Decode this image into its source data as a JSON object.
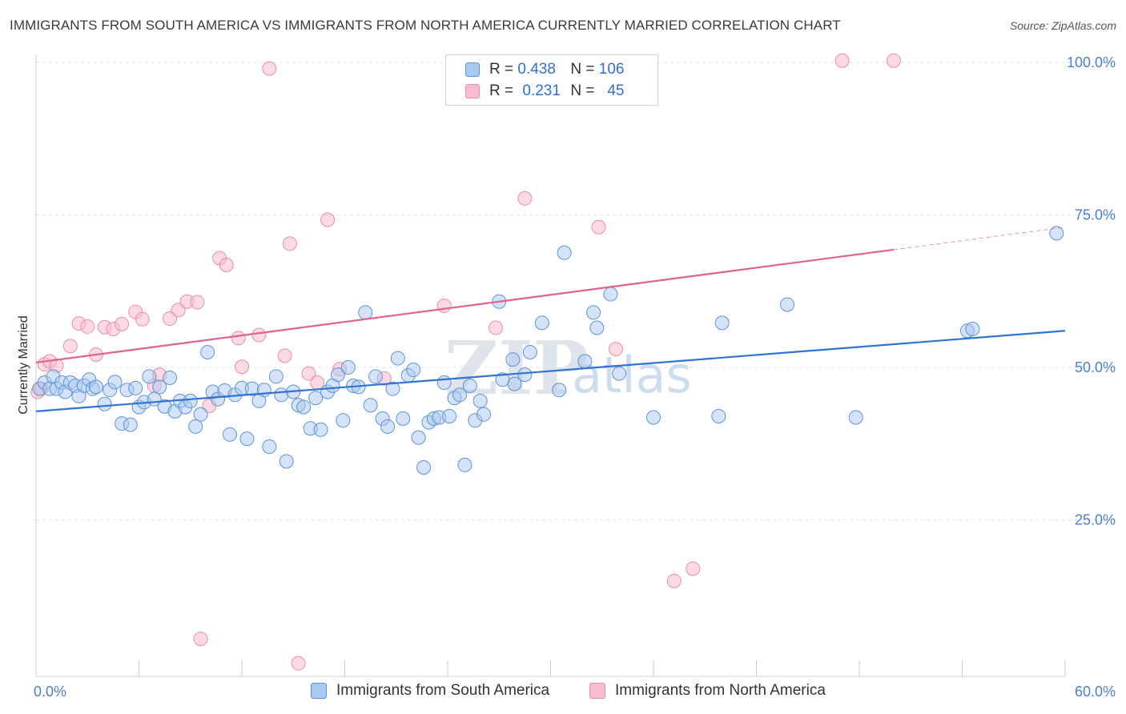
{
  "header": {
    "title": "IMMIGRANTS FROM SOUTH AMERICA VS IMMIGRANTS FROM NORTH AMERICA CURRENTLY MARRIED CORRELATION CHART",
    "source": "Source: ZipAtlas.com"
  },
  "legend": {
    "r_label": "R =",
    "n_label": "N =",
    "rows": [
      {
        "r": "0.438",
        "n": "106"
      },
      {
        "r": "0.231",
        "n": "45"
      }
    ]
  },
  "bottom_legend": {
    "south": "Immigrants from South America",
    "north": "Immigrants from North America"
  },
  "watermark": {
    "zip": "ZIP",
    "atlas": "atlas"
  },
  "colors": {
    "south_fill": "#a9c8f0",
    "south_stroke": "#5f93d6",
    "south_line": "#2f74d0",
    "north_fill": "#f7bccd",
    "north_stroke": "#e58fab",
    "north_line": "#e0628f",
    "tick_text": "#4a7fd0"
  },
  "chart_data": {
    "type": "scatter",
    "title": "IMMIGRANTS FROM SOUTH AMERICA VS IMMIGRANTS FROM NORTH AMERICA CURRENTLY MARRIED CORRELATION CHART",
    "xlabel": "",
    "ylabel": "Currently Married",
    "xlim": [
      0,
      60
    ],
    "ylim": [
      0,
      102
    ],
    "x_tick_labels": [
      "0.0%",
      "60.0%"
    ],
    "y_ticks": [
      25,
      50,
      75,
      100
    ],
    "y_tick_labels": [
      "25.0%",
      "50.0%",
      "75.0%",
      "100.0%"
    ],
    "grid": true,
    "series": [
      {
        "name": "Immigrants from South America",
        "r": 0.438,
        "n": 106,
        "trend": {
          "x0": 0,
          "y0": 42.8,
          "x1": 60,
          "y1": 56.0
        },
        "points": [
          [
            0.2,
            46.5
          ],
          [
            0.5,
            47.5
          ],
          [
            0.8,
            46.5
          ],
          [
            1.0,
            48.5
          ],
          [
            1.2,
            46.5
          ],
          [
            1.5,
            47.5
          ],
          [
            1.7,
            46.0
          ],
          [
            2.0,
            47.5
          ],
          [
            2.3,
            47.0
          ],
          [
            2.5,
            45.3
          ],
          [
            2.8,
            47.0
          ],
          [
            3.1,
            48.0
          ],
          [
            3.3,
            46.5
          ],
          [
            3.5,
            46.8
          ],
          [
            4.0,
            44.0
          ],
          [
            4.3,
            46.3
          ],
          [
            4.6,
            47.6
          ],
          [
            5.0,
            40.8
          ],
          [
            5.3,
            46.3
          ],
          [
            5.5,
            40.6
          ],
          [
            5.8,
            46.6
          ],
          [
            6.0,
            43.5
          ],
          [
            6.3,
            44.3
          ],
          [
            6.6,
            48.5
          ],
          [
            6.9,
            44.8
          ],
          [
            7.2,
            46.8
          ],
          [
            7.5,
            43.6
          ],
          [
            7.8,
            48.3
          ],
          [
            8.1,
            42.8
          ],
          [
            8.4,
            44.5
          ],
          [
            8.7,
            43.5
          ],
          [
            9.0,
            44.5
          ],
          [
            9.3,
            40.3
          ],
          [
            9.6,
            42.3
          ],
          [
            10.0,
            52.5
          ],
          [
            10.3,
            46.0
          ],
          [
            10.6,
            44.8
          ],
          [
            11.0,
            46.2
          ],
          [
            11.3,
            39.0
          ],
          [
            11.6,
            45.5
          ],
          [
            12.0,
            46.6
          ],
          [
            12.3,
            38.3
          ],
          [
            12.6,
            46.5
          ],
          [
            13.0,
            44.5
          ],
          [
            13.3,
            46.3
          ],
          [
            13.6,
            37.0
          ],
          [
            14.0,
            48.5
          ],
          [
            14.3,
            45.5
          ],
          [
            14.6,
            34.6
          ],
          [
            15.0,
            46.0
          ],
          [
            15.3,
            43.8
          ],
          [
            15.6,
            43.5
          ],
          [
            16.0,
            40.0
          ],
          [
            16.3,
            45.0
          ],
          [
            16.6,
            39.8
          ],
          [
            17.0,
            46.0
          ],
          [
            17.3,
            47.0
          ],
          [
            17.6,
            48.8
          ],
          [
            17.9,
            41.3
          ],
          [
            18.2,
            50.0
          ],
          [
            18.5,
            47.0
          ],
          [
            18.8,
            46.8
          ],
          [
            19.2,
            59.0
          ],
          [
            19.5,
            43.8
          ],
          [
            19.8,
            48.5
          ],
          [
            20.2,
            41.6
          ],
          [
            20.5,
            40.3
          ],
          [
            20.8,
            46.5
          ],
          [
            21.1,
            51.5
          ],
          [
            21.4,
            41.6
          ],
          [
            21.7,
            48.7
          ],
          [
            22.0,
            49.6
          ],
          [
            22.3,
            38.5
          ],
          [
            22.6,
            33.6
          ],
          [
            22.9,
            41.0
          ],
          [
            23.2,
            41.6
          ],
          [
            23.5,
            41.8
          ],
          [
            23.8,
            47.5
          ],
          [
            24.1,
            42.0
          ],
          [
            24.4,
            45.0
          ],
          [
            24.7,
            45.5
          ],
          [
            25.0,
            34.0
          ],
          [
            25.3,
            47.0
          ],
          [
            25.6,
            41.3
          ],
          [
            25.9,
            44.5
          ],
          [
            26.1,
            42.3
          ],
          [
            27.0,
            60.8
          ],
          [
            27.2,
            48.0
          ],
          [
            27.8,
            51.3
          ],
          [
            27.9,
            47.3
          ],
          [
            28.5,
            48.8
          ],
          [
            28.8,
            52.5
          ],
          [
            29.5,
            57.3
          ],
          [
            30.5,
            46.3
          ],
          [
            30.8,
            68.8
          ],
          [
            32.0,
            51.0
          ],
          [
            32.5,
            59.0
          ],
          [
            32.7,
            56.5
          ],
          [
            33.5,
            62.0
          ],
          [
            34.0,
            49.0
          ],
          [
            36.0,
            41.8
          ],
          [
            39.8,
            42.0
          ],
          [
            40.0,
            57.3
          ],
          [
            43.8,
            60.3
          ],
          [
            47.8,
            41.8
          ],
          [
            54.3,
            56.0
          ],
          [
            54.6,
            56.3
          ],
          [
            59.5,
            72.0
          ]
        ]
      },
      {
        "name": "Immigrants from North America",
        "r": 0.231,
        "n": 45,
        "trend": {
          "x0": 0,
          "y0": 50.8,
          "x1": 60,
          "y1": 73.0,
          "solid_until_x": 50
        },
        "points": [
          [
            0.1,
            46.0
          ],
          [
            0.3,
            46.5
          ],
          [
            0.5,
            50.5
          ],
          [
            0.8,
            51.0
          ],
          [
            1.2,
            50.3
          ],
          [
            2.0,
            53.5
          ],
          [
            2.5,
            57.2
          ],
          [
            3.0,
            56.7
          ],
          [
            3.5,
            52.1
          ],
          [
            4.0,
            56.6
          ],
          [
            4.5,
            56.3
          ],
          [
            5.0,
            57.1
          ],
          [
            5.8,
            59.1
          ],
          [
            6.2,
            57.9
          ],
          [
            6.9,
            47.0
          ],
          [
            7.2,
            48.8
          ],
          [
            7.8,
            58.0
          ],
          [
            8.3,
            59.4
          ],
          [
            8.8,
            60.8
          ],
          [
            9.4,
            60.7
          ],
          [
            9.6,
            5.5
          ],
          [
            10.1,
            43.7
          ],
          [
            10.7,
            67.9
          ],
          [
            11.1,
            66.8
          ],
          [
            11.8,
            54.8
          ],
          [
            12.0,
            50.1
          ],
          [
            13.0,
            55.3
          ],
          [
            13.6,
            99.0
          ],
          [
            14.5,
            51.9
          ],
          [
            14.8,
            70.3
          ],
          [
            15.3,
            1.5
          ],
          [
            15.9,
            49.0
          ],
          [
            16.4,
            47.5
          ],
          [
            17.0,
            74.2
          ],
          [
            17.7,
            49.7
          ],
          [
            20.3,
            48.2
          ],
          [
            23.8,
            60.1
          ],
          [
            26.8,
            56.5
          ],
          [
            28.5,
            77.7
          ],
          [
            32.8,
            73.0
          ],
          [
            33.8,
            53.0
          ],
          [
            37.2,
            15.0
          ],
          [
            38.3,
            17.0
          ],
          [
            47.0,
            100.3
          ],
          [
            50.0,
            100.3
          ]
        ]
      }
    ]
  }
}
